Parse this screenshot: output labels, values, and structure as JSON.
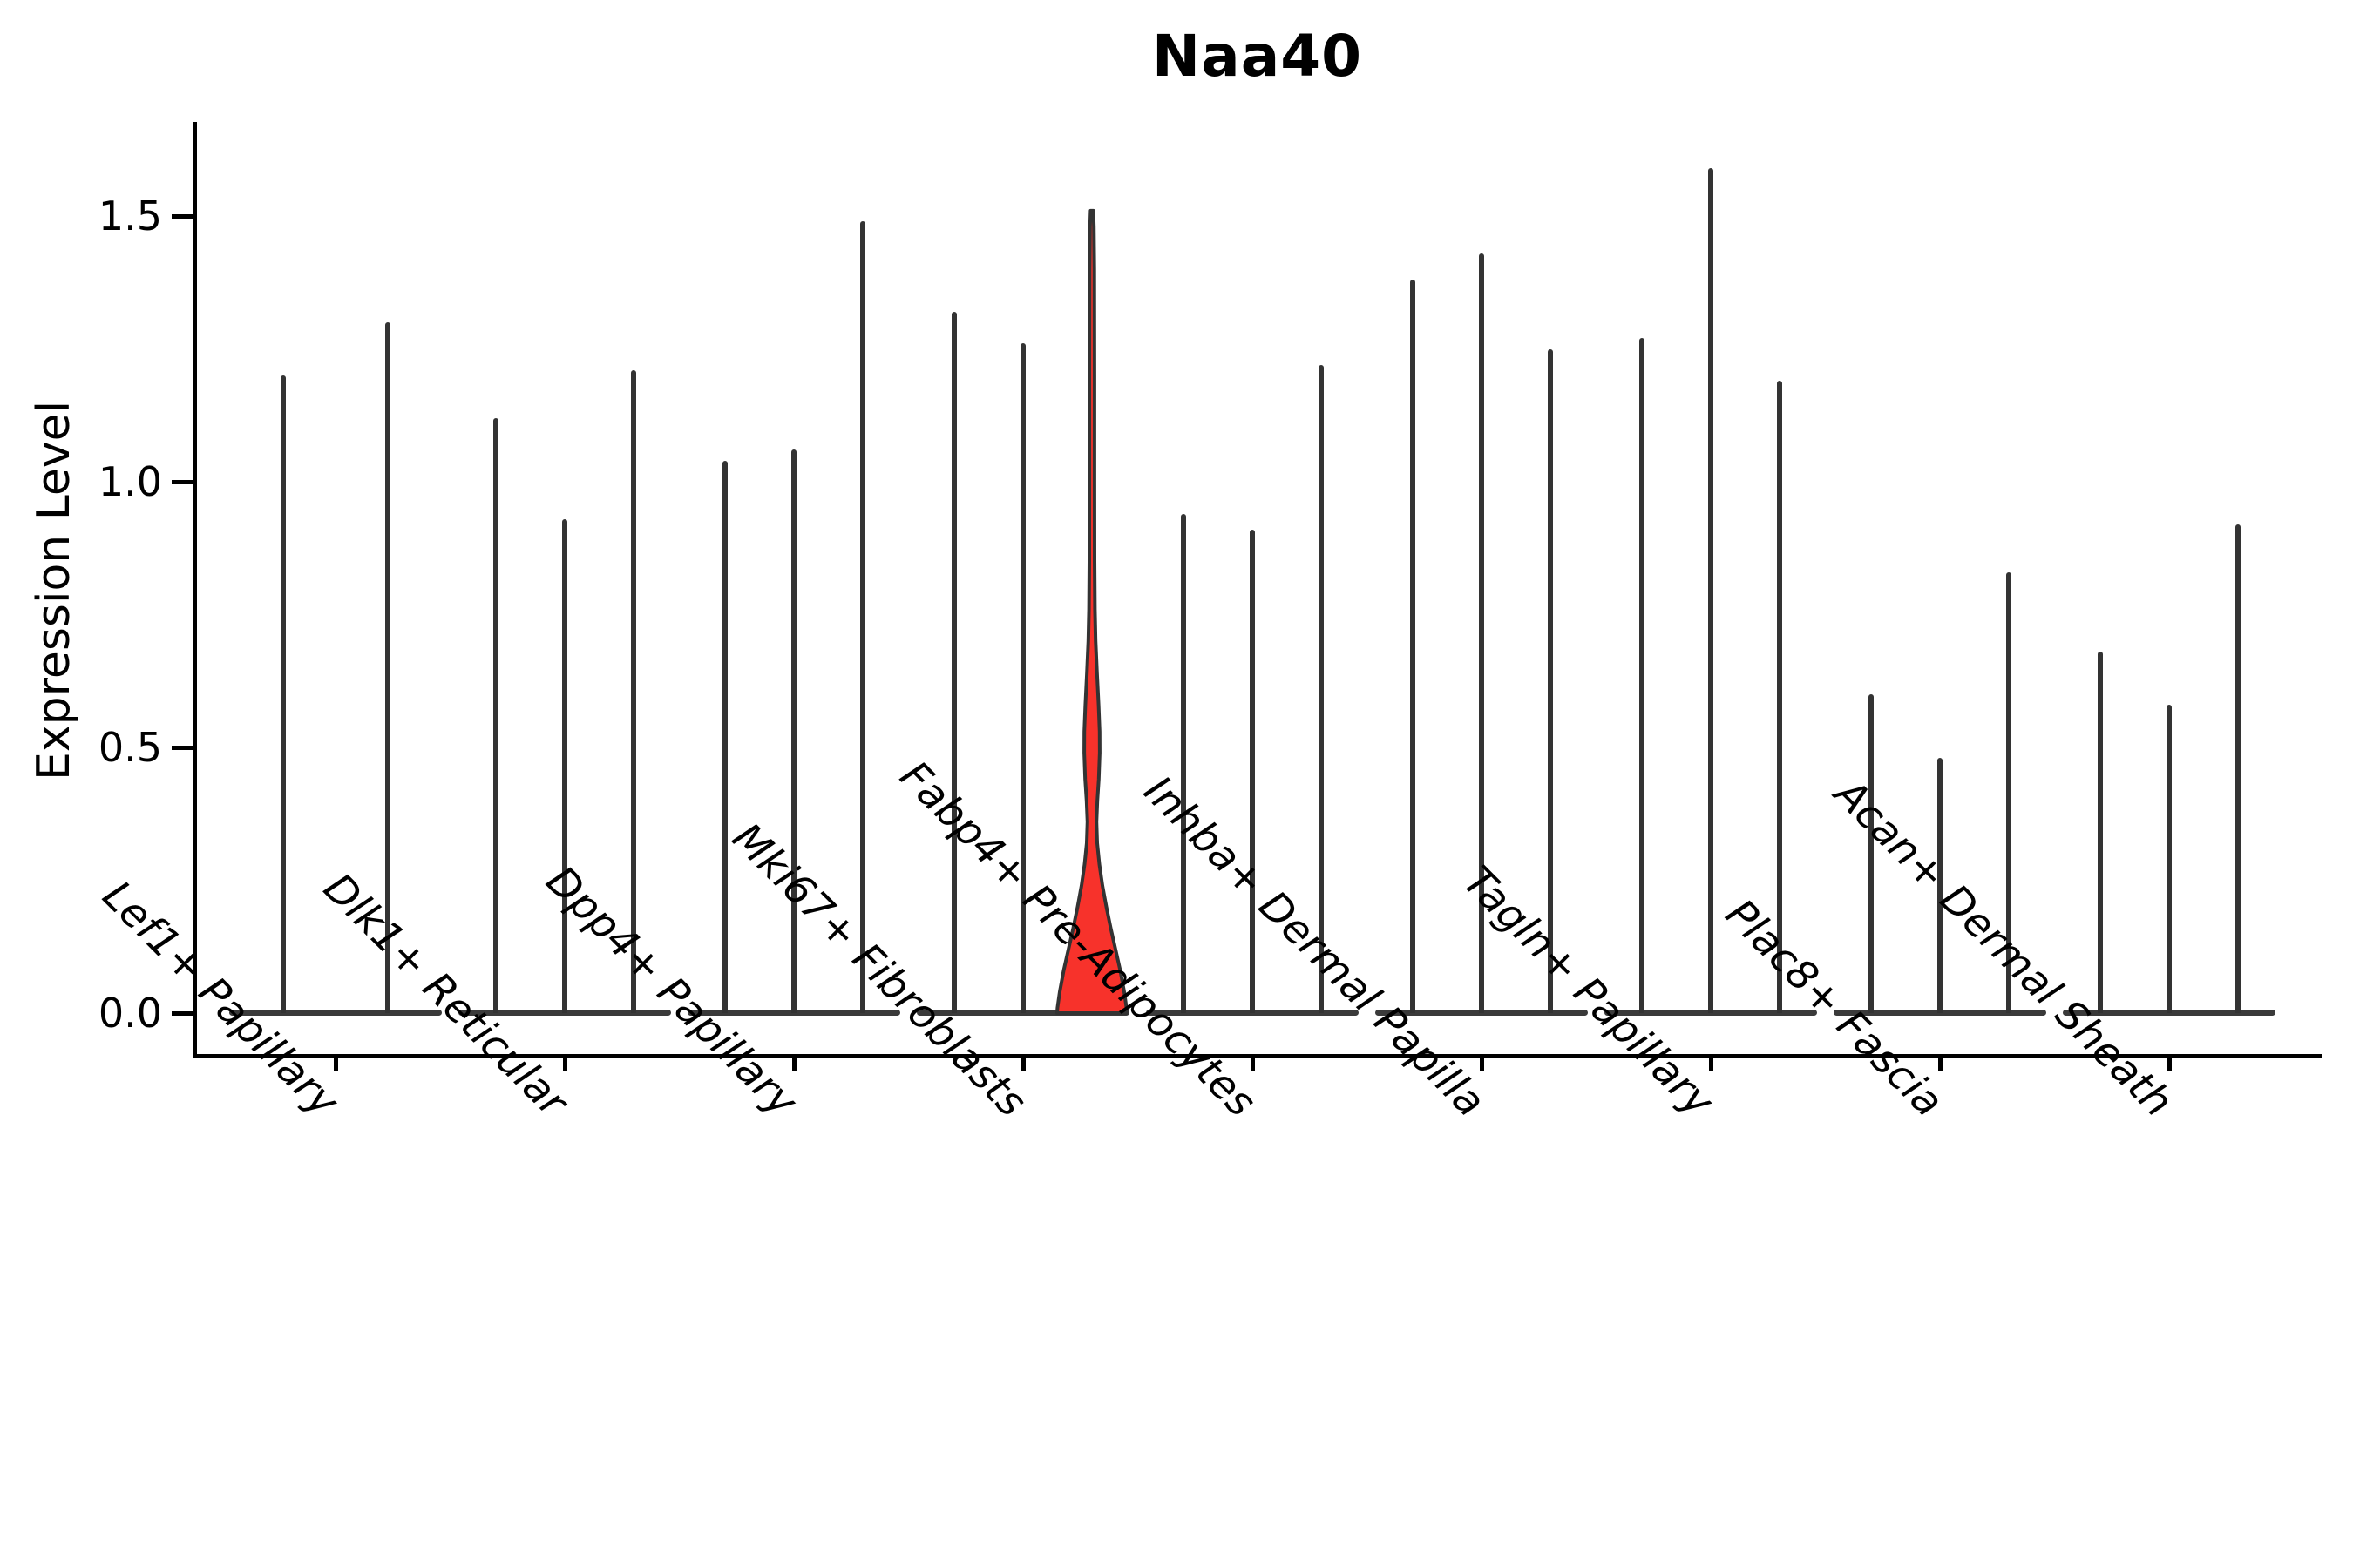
{
  "chart_data": {
    "type": "violin",
    "title": "Naa40",
    "xlabel": "",
    "ylabel": "Expression Level",
    "yticks": [
      0.0,
      0.5,
      1.0,
      1.5
    ],
    "ylim": [
      0,
      1.68
    ],
    "grid": false,
    "legend": "none",
    "categories": [
      "Lef1+ Papillary",
      "Dlk1+ Reticular",
      "Dpp4+ Papillary",
      "Mki67+ Fibroblasts",
      "Fabp4+ Pre-Adipocytes",
      "Inhba+ Dermal Papilla",
      "Tagln+ Papillary",
      "Plac8+ Fascia",
      "Acan+ Dermal Sheath"
    ],
    "groups": [
      {
        "category": "Lef1+ Papillary",
        "violins": [
          {
            "max": 1.2
          },
          {
            "max": 1.3
          }
        ]
      },
      {
        "category": "Dlk1+ Reticular",
        "violins": [
          {
            "max": 1.12
          },
          {
            "max": 0.93
          },
          {
            "max": 1.21
          }
        ]
      },
      {
        "category": "Dpp4+ Papillary",
        "violins": [
          {
            "max": 1.04
          },
          {
            "max": 1.06
          },
          {
            "max": 1.49
          }
        ]
      },
      {
        "category": "Mki67+ Fibroblasts",
        "violins": [
          {
            "max": 1.32
          },
          {
            "max": 1.26
          },
          {
            "max": 1.51,
            "highlight": true
          }
        ]
      },
      {
        "category": "Fabp4+ Pre-Adipocytes",
        "violins": [
          {
            "max": 0.94
          },
          {
            "max": 0.91
          },
          {
            "max": 1.22
          }
        ]
      },
      {
        "category": "Inhba+ Dermal Papilla",
        "violins": [
          {
            "max": 1.38
          },
          {
            "max": 1.43
          },
          {
            "max": 1.25
          }
        ]
      },
      {
        "category": "Tagln+ Papillary",
        "violins": [
          {
            "max": 1.27
          },
          {
            "max": 1.59
          },
          {
            "max": 1.19
          }
        ]
      },
      {
        "category": "Plac8+ Fascia",
        "violins": [
          {
            "max": 0.6
          },
          {
            "max": 0.48
          },
          {
            "max": 0.83
          }
        ]
      },
      {
        "category": "Acan+ Dermal Sheath",
        "violins": [
          {
            "max": 0.68
          },
          {
            "max": 0.58
          },
          {
            "max": 0.92
          }
        ]
      }
    ],
    "highlight_profile": [
      [
        1.51,
        0.04
      ],
      [
        1.48,
        0.055
      ],
      [
        1.4,
        0.068
      ],
      [
        1.2,
        0.073
      ],
      [
        1.0,
        0.073
      ],
      [
        0.85,
        0.075
      ],
      [
        0.76,
        0.085
      ],
      [
        0.7,
        0.105
      ],
      [
        0.64,
        0.145
      ],
      [
        0.58,
        0.19
      ],
      [
        0.53,
        0.22
      ],
      [
        0.49,
        0.223
      ],
      [
        0.44,
        0.195
      ],
      [
        0.4,
        0.155
      ],
      [
        0.36,
        0.13
      ],
      [
        0.32,
        0.15
      ],
      [
        0.28,
        0.213
      ],
      [
        0.24,
        0.3
      ],
      [
        0.2,
        0.413
      ],
      [
        0.16,
        0.538
      ],
      [
        0.12,
        0.675
      ],
      [
        0.08,
        0.813
      ],
      [
        0.04,
        0.925
      ],
      [
        0.01,
        0.99
      ],
      [
        0.0,
        1.0
      ]
    ],
    "colors": {
      "background": "#ffffff",
      "axis": "#000000",
      "text": "#000000",
      "violin_edge": "#333333",
      "violin_base": "#3a3a3a",
      "highlight_fill": "#F7322B"
    }
  }
}
